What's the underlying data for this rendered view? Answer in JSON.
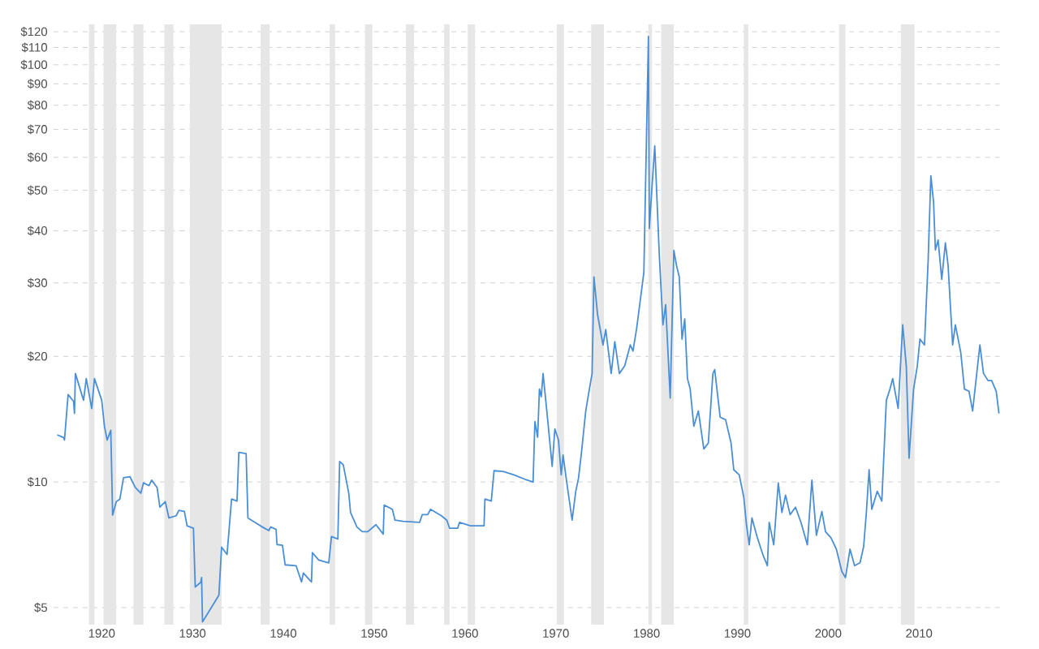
{
  "chart_data": {
    "type": "line",
    "log": "y",
    "grid": "y",
    "xlim": [
      1914.7,
      2019.1
    ],
    "ylim": [
      4.55,
      125
    ],
    "xticks": [
      1920,
      1930,
      1940,
      1950,
      1960,
      1970,
      1980,
      1990,
      2000,
      2010
    ],
    "yticks": [
      {
        "value": 5,
        "label": "$5"
      },
      {
        "value": 10,
        "label": "$10"
      },
      {
        "value": 20,
        "label": "$20"
      },
      {
        "value": 30,
        "label": "$30"
      },
      {
        "value": 40,
        "label": "$40"
      },
      {
        "value": 50,
        "label": "$50"
      },
      {
        "value": 60,
        "label": "$60"
      },
      {
        "value": 70,
        "label": "$70"
      },
      {
        "value": 80,
        "label": "$80"
      },
      {
        "value": 90,
        "label": "$90"
      },
      {
        "value": 100,
        "label": "$100"
      },
      {
        "value": 110,
        "label": "$110"
      },
      {
        "value": 120,
        "label": "$120"
      }
    ],
    "bands": [
      {
        "axis": "x",
        "from": 1918.6,
        "to": 1919.2,
        "color": "#e6e6e6"
      },
      {
        "axis": "x",
        "from": 1920.2,
        "to": 1921.6,
        "color": "#e6e6e6"
      },
      {
        "axis": "x",
        "from": 1923.5,
        "to": 1924.6,
        "color": "#e6e6e6"
      },
      {
        "axis": "x",
        "from": 1926.9,
        "to": 1927.9,
        "color": "#e6e6e6"
      },
      {
        "axis": "x",
        "from": 1929.7,
        "to": 1933.2,
        "color": "#e6e6e6"
      },
      {
        "axis": "x",
        "from": 1937.5,
        "to": 1938.5,
        "color": "#e6e6e6"
      },
      {
        "axis": "x",
        "from": 1945.1,
        "to": 1945.7,
        "color": "#e6e6e6"
      },
      {
        "axis": "x",
        "from": 1949.0,
        "to": 1949.8,
        "color": "#e6e6e6"
      },
      {
        "axis": "x",
        "from": 1953.5,
        "to": 1954.4,
        "color": "#e6e6e6"
      },
      {
        "axis": "x",
        "from": 1957.7,
        "to": 1958.3,
        "color": "#e6e6e6"
      },
      {
        "axis": "x",
        "from": 1960.3,
        "to": 1961.1,
        "color": "#e6e6e6"
      },
      {
        "axis": "x",
        "from": 1970.1,
        "to": 1970.9,
        "color": "#e6e6e6"
      },
      {
        "axis": "x",
        "from": 1973.9,
        "to": 1975.3,
        "color": "#e6e6e6"
      },
      {
        "axis": "x",
        "from": 1980.2,
        "to": 1980.6,
        "color": "#e6e6e6"
      },
      {
        "axis": "x",
        "from": 1981.6,
        "to": 1983.0,
        "color": "#e6e6e6"
      },
      {
        "axis": "x",
        "from": 1990.7,
        "to": 1991.2,
        "color": "#e6e6e6"
      },
      {
        "axis": "x",
        "from": 2001.2,
        "to": 2001.9,
        "color": "#e6e6e6"
      },
      {
        "axis": "x",
        "from": 2008.0,
        "to": 2009.5,
        "color": "#e6e6e6"
      }
    ],
    "series": [
      {
        "color": "#4a8fd6",
        "x": [
          1915.1,
          1915.8,
          1915.9,
          1916.3,
          1916.9,
          1917.0,
          1917.1,
          1918.0,
          1918.3,
          1918.9,
          1919.2,
          1920.0,
          1920.3,
          1920.6,
          1921.0,
          1921.2,
          1921.6,
          1922.0,
          1922.4,
          1923.1,
          1923.7,
          1924.3,
          1924.6,
          1925.2,
          1925.5,
          1926.1,
          1926.4,
          1927.0,
          1927.4,
          1928.2,
          1928.5,
          1929.1,
          1929.4,
          1930.1,
          1930.3,
          1930.9,
          1931.0,
          1931.1,
          1932.9,
          1933.2,
          1933.8,
          1934.3,
          1934.9,
          1935.1,
          1935.9,
          1936.1,
          1937.1,
          1937.7,
          1938.4,
          1938.6,
          1939.2,
          1939.3,
          1939.9,
          1940.2,
          1941.4,
          1942.0,
          1942.2,
          1943.1,
          1943.2,
          1943.9,
          1945.0,
          1945.3,
          1946.0,
          1946.2,
          1946.6,
          1947.2,
          1947.4,
          1948.1,
          1948.7,
          1949.3,
          1950.2,
          1951.0,
          1951.1,
          1952.0,
          1952.3,
          1953.2,
          1955.0,
          1955.3,
          1955.9,
          1956.2,
          1957.4,
          1958.0,
          1958.3,
          1959.2,
          1959.4,
          1960.6,
          1961.5,
          1962.1,
          1962.2,
          1962.9,
          1963.2,
          1964.2,
          1965.4,
          1966.6,
          1967.5,
          1967.7,
          1968.0,
          1968.2,
          1968.4,
          1968.6,
          1969.0,
          1969.6,
          1969.9,
          1970.3,
          1970.6,
          1970.8,
          1971.2,
          1971.8,
          1972.2,
          1972.5,
          1972.8,
          1973.3,
          1973.7,
          1974.0,
          1974.2,
          1974.6,
          1975.2,
          1975.5,
          1976.1,
          1976.5,
          1977.0,
          1977.6,
          1978.2,
          1978.5,
          1978.9,
          1979.4,
          1979.7,
          1980.2,
          1980.3,
          1980.6,
          1980.9,
          1981.4,
          1981.8,
          1982.1,
          1982.6,
          1983.0,
          1983.3,
          1983.6,
          1983.9,
          1984.2,
          1984.5,
          1984.8,
          1985.2,
          1985.7,
          1986.3,
          1986.8,
          1987.3,
          1987.5,
          1988.1,
          1988.7,
          1989.3,
          1989.6,
          1990.2,
          1990.7,
          1991.0,
          1991.3,
          1991.6,
          1992.2,
          1992.8,
          1993.3,
          1993.5,
          1994.0,
          1994.5,
          1994.9,
          1995.3,
          1995.8,
          1996.4,
          1997.0,
          1997.7,
          1998.2,
          1998.7,
          1999.3,
          1999.7,
          2000.3,
          2000.9,
          2001.5,
          2001.9,
          2002.4,
          2002.9,
          2003.5,
          2003.9,
          2004.2,
          2004.5,
          2004.8,
          2005.4,
          2005.9,
          2006.4,
          2006.8,
          2007.1,
          2007.7,
          2008.2,
          2008.6,
          2008.9,
          2009.4,
          2009.8,
          2010.1,
          2010.6,
          2011.0,
          2011.3,
          2011.6,
          2011.8,
          2012.1,
          2012.5,
          2012.9,
          2013.2,
          2013.7,
          2014.0,
          2014.6,
          2015.0,
          2015.5,
          2015.9,
          2016.7,
          2017.1,
          2017.6,
          2018.0,
          2018.5,
          2018.8
        ],
        "values": [
          12.97,
          12.78,
          12.6,
          16.2,
          15.6,
          14.6,
          18.2,
          15.7,
          17.7,
          15.0,
          17.7,
          15.7,
          13.6,
          12.6,
          13.3,
          8.33,
          8.97,
          9.1,
          10.24,
          10.3,
          9.7,
          9.4,
          9.95,
          9.8,
          10.1,
          9.7,
          8.7,
          8.97,
          8.2,
          8.3,
          8.55,
          8.5,
          7.85,
          7.75,
          5.6,
          5.75,
          5.9,
          4.62,
          5.35,
          6.98,
          6.7,
          9.1,
          9.0,
          11.77,
          11.7,
          8.2,
          7.95,
          7.8,
          7.65,
          7.8,
          7.7,
          7.08,
          7.05,
          6.33,
          6.3,
          5.76,
          6.05,
          5.76,
          6.77,
          6.5,
          6.4,
          7.4,
          7.3,
          11.2,
          11.0,
          9.4,
          8.45,
          7.8,
          7.6,
          7.6,
          7.9,
          7.5,
          8.8,
          8.6,
          8.1,
          8.05,
          8.0,
          8.35,
          8.35,
          8.6,
          8.3,
          8.1,
          7.75,
          7.75,
          8.0,
          7.85,
          7.85,
          7.85,
          9.1,
          9.0,
          10.64,
          10.6,
          10.4,
          10.15,
          10.0,
          13.96,
          12.8,
          16.7,
          16.0,
          18.2,
          14.9,
          10.9,
          13.4,
          12.6,
          10.4,
          11.6,
          10.0,
          8.1,
          9.5,
          10.2,
          11.6,
          14.8,
          16.7,
          18.2,
          31.0,
          25.2,
          21.3,
          23.2,
          18.2,
          21.7,
          18.2,
          19.0,
          21.3,
          20.6,
          23.3,
          28.3,
          31.8,
          116.9,
          40.5,
          51.1,
          63.9,
          34.9,
          23.8,
          26.6,
          15.9,
          35.9,
          33.0,
          31.0,
          22.0,
          24.6,
          17.7,
          16.7,
          13.6,
          14.8,
          12.0,
          12.4,
          18.2,
          18.6,
          14.3,
          14.1,
          12.4,
          10.7,
          10.4,
          9.2,
          7.9,
          7.07,
          8.2,
          7.35,
          6.7,
          6.3,
          8.0,
          7.07,
          9.95,
          8.45,
          9.3,
          8.35,
          8.7,
          8.0,
          7.07,
          10.1,
          7.45,
          8.5,
          7.6,
          7.35,
          6.9,
          6.1,
          5.9,
          6.9,
          6.3,
          6.4,
          7.0,
          8.45,
          10.7,
          8.6,
          9.5,
          9.0,
          15.7,
          16.7,
          17.7,
          15.0,
          23.8,
          18.9,
          11.4,
          16.7,
          18.9,
          22.0,
          21.3,
          33.8,
          54.2,
          46.9,
          36.0,
          38.0,
          30.6,
          37.4,
          33.0,
          21.3,
          23.8,
          20.4,
          16.7,
          16.5,
          14.8,
          21.3,
          18.2,
          17.5,
          17.5,
          16.5,
          14.6
        ]
      }
    ]
  }
}
